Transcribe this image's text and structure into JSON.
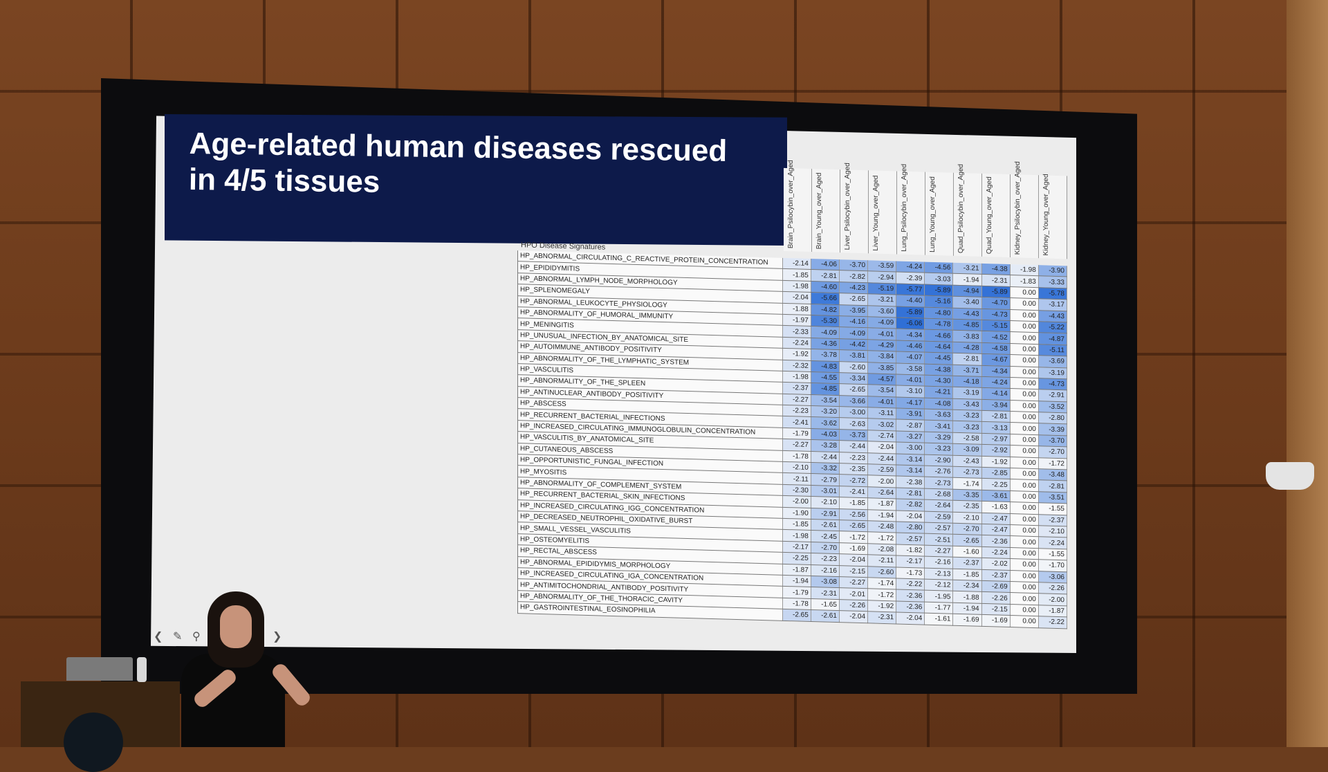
{
  "slide": {
    "title_line1": "Age-related human diseases rescued",
    "title_line2": "in 4/5 tissues",
    "row_header": "HPO Disease Signatures",
    "columns": [
      "Brain_Psilocybin_over_Aged",
      "Brain_Young_over_Aged",
      "Liver_Psilocybin_over_Aged",
      "Liver_Young_over_Aged",
      "Lung_Psilocybin_over_Aged",
      "Lung_Young_over_Aged",
      "Quad_Psilocybin_over_Aged",
      "Quad_Young_over_Aged",
      "Kidney_Psilocybin_over_Aged",
      "Kidney_Young_over_Aged"
    ],
    "rows": [
      {
        "name": "HP_ABNORMAL_CIRCULATING_C_REACTIVE_PROTEIN_CONCENTRATION",
        "values": [
          "-2.14",
          "-4.06",
          "-3.70",
          "-3.59",
          "-4.24",
          "-4.56",
          "-3.21",
          "-4.38",
          "-1.98",
          "-3.90"
        ]
      },
      {
        "name": "HP_EPIDIDYMITIS",
        "values": [
          "-1.85",
          "-2.81",
          "-2.82",
          "-2.94",
          "-2.39",
          "-3.03",
          "-1.94",
          "-2.31",
          "-1.83",
          "-3.33"
        ]
      },
      {
        "name": "HP_ABNORMAL_LYMPH_NODE_MORPHOLOGY",
        "values": [
          "-1.98",
          "-4.60",
          "-4.23",
          "-5.19",
          "-5.77",
          "-5.89",
          "-4.94",
          "-5.89",
          "0.00",
          "-5.78"
        ]
      },
      {
        "name": "HP_SPLENOMEGALY",
        "values": [
          "-2.04",
          "-5.66",
          "-2.65",
          "-3.21",
          "-4.40",
          "-5.16",
          "-3.40",
          "-4.70",
          "0.00",
          "-3.17"
        ]
      },
      {
        "name": "HP_ABNORMAL_LEUKOCYTE_PHYSIOLOGY",
        "values": [
          "-1.88",
          "-4.82",
          "-3.95",
          "-3.60",
          "-5.89",
          "-4.80",
          "-4.43",
          "-4.73",
          "0.00",
          "-4.43"
        ]
      },
      {
        "name": "HP_ABNORMALITY_OF_HUMORAL_IMMUNITY",
        "values": [
          "-1.97",
          "-5.30",
          "-4.16",
          "-4.09",
          "-6.06",
          "-4.78",
          "-4.85",
          "-5.15",
          "0.00",
          "-5.22"
        ]
      },
      {
        "name": "HP_MENINGITIS",
        "values": [
          "-2.33",
          "-4.09",
          "-4.09",
          "-4.01",
          "-4.34",
          "-4.66",
          "-3.83",
          "-4.52",
          "0.00",
          "-4.87"
        ]
      },
      {
        "name": "HP_UNUSUAL_INFECTION_BY_ANATOMICAL_SITE",
        "values": [
          "-2.24",
          "-4.36",
          "-4.42",
          "-4.29",
          "-4.46",
          "-4.64",
          "-4.28",
          "-4.58",
          "0.00",
          "-5.11"
        ]
      },
      {
        "name": "HP_AUTOIMMUNE_ANTIBODY_POSITIVITY",
        "values": [
          "-1.92",
          "-3.78",
          "-3.81",
          "-3.84",
          "-4.07",
          "-4.45",
          "-2.81",
          "-4.67",
          "0.00",
          "-3.69"
        ]
      },
      {
        "name": "HP_ABNORMALITY_OF_THE_LYMPHATIC_SYSTEM",
        "values": [
          "-2.32",
          "-4.83",
          "-2.60",
          "-3.85",
          "-3.58",
          "-4.38",
          "-3.71",
          "-4.34",
          "0.00",
          "-3.19"
        ]
      },
      {
        "name": "HP_VASCULITIS",
        "values": [
          "-1.98",
          "-4.55",
          "-3.34",
          "-4.57",
          "-4.01",
          "-4.30",
          "-4.18",
          "-4.24",
          "0.00",
          "-4.73"
        ]
      },
      {
        "name": "HP_ABNORMALITY_OF_THE_SPLEEN",
        "values": [
          "-2.37",
          "-4.85",
          "-2.65",
          "-3.54",
          "-3.10",
          "-4.21",
          "-3.19",
          "-4.14",
          "0.00",
          "-2.91"
        ]
      },
      {
        "name": "HP_ANTINUCLEAR_ANTIBODY_POSITIVITY",
        "values": [
          "-2.27",
          "-3.54",
          "-3.66",
          "-4.01",
          "-4.17",
          "-4.08",
          "-3.43",
          "-3.94",
          "0.00",
          "-3.52"
        ]
      },
      {
        "name": "HP_ABSCESS",
        "values": [
          "-2.23",
          "-3.20",
          "-3.00",
          "-3.11",
          "-3.91",
          "-3.63",
          "-3.23",
          "-2.81",
          "0.00",
          "-2.80"
        ]
      },
      {
        "name": "HP_RECURRENT_BACTERIAL_INFECTIONS",
        "values": [
          "-2.41",
          "-3.62",
          "-2.63",
          "-3.02",
          "-2.87",
          "-3.41",
          "-3.23",
          "-3.13",
          "0.00",
          "-3.39"
        ]
      },
      {
        "name": "HP_INCREASED_CIRCULATING_IMMUNOGLOBULIN_CONCENTRATION",
        "values": [
          "-1.79",
          "-4.03",
          "-3.73",
          "-2.74",
          "-3.27",
          "-3.29",
          "-2.58",
          "-2.97",
          "0.00",
          "-3.70"
        ]
      },
      {
        "name": "HP_VASCULITIS_BY_ANATOMICAL_SITE",
        "values": [
          "-2.27",
          "-3.28",
          "-2.44",
          "-2.04",
          "-3.00",
          "-3.23",
          "-3.09",
          "-2.92",
          "0.00",
          "-2.70"
        ]
      },
      {
        "name": "HP_CUTANEOUS_ABSCESS",
        "values": [
          "-1.78",
          "-2.44",
          "-2.23",
          "-2.44",
          "-3.14",
          "-2.90",
          "-2.43",
          "-1.92",
          "0.00",
          "-1.72"
        ]
      },
      {
        "name": "HP_OPPORTUNISTIC_FUNGAL_INFECTION",
        "values": [
          "-2.10",
          "-3.32",
          "-2.35",
          "-2.59",
          "-3.14",
          "-2.76",
          "-2.73",
          "-2.85",
          "0.00",
          "-3.48"
        ]
      },
      {
        "name": "HP_MYOSITIS",
        "values": [
          "-2.11",
          "-2.79",
          "-2.72",
          "-2.00",
          "-2.38",
          "-2.73",
          "-1.74",
          "-2.25",
          "0.00",
          "-2.81"
        ]
      },
      {
        "name": "HP_ABNORMALITY_OF_COMPLEMENT_SYSTEM",
        "values": [
          "-2.30",
          "-3.01",
          "-2.41",
          "-2.64",
          "-2.81",
          "-2.68",
          "-3.35",
          "-3.61",
          "0.00",
          "-3.51"
        ]
      },
      {
        "name": "HP_RECURRENT_BACTERIAL_SKIN_INFECTIONS",
        "values": [
          "-2.00",
          "-2.10",
          "-1.85",
          "-1.87",
          "-2.82",
          "-2.64",
          "-2.35",
          "-1.63",
          "0.00",
          "-1.55"
        ]
      },
      {
        "name": "HP_INCREASED_CIRCULATING_IGG_CONCENTRATION",
        "values": [
          "-1.90",
          "-2.91",
          "-2.56",
          "-1.94",
          "-2.04",
          "-2.59",
          "-2.10",
          "-2.47",
          "0.00",
          "-2.37"
        ]
      },
      {
        "name": "HP_DECREASED_NEUTROPHIL_OXIDATIVE_BURST",
        "values": [
          "-1.85",
          "-2.61",
          "-2.65",
          "-2.48",
          "-2.80",
          "-2.57",
          "-2.70",
          "-2.47",
          "0.00",
          "-2.10"
        ]
      },
      {
        "name": "HP_SMALL_VESSEL_VASCULITIS",
        "values": [
          "-1.98",
          "-2.45",
          "-1.72",
          "-1.72",
          "-2.57",
          "-2.51",
          "-2.65",
          "-2.36",
          "0.00",
          "-2.24"
        ]
      },
      {
        "name": "HP_OSTEOMYELITIS",
        "values": [
          "-2.17",
          "-2.70",
          "-1.69",
          "-2.08",
          "-1.82",
          "-2.27",
          "-1.60",
          "-2.24",
          "0.00",
          "-1.55"
        ]
      },
      {
        "name": "HP_RECTAL_ABSCESS",
        "values": [
          "-2.25",
          "-2.23",
          "-2.04",
          "-2.11",
          "-2.17",
          "-2.16",
          "-2.37",
          "-2.02",
          "0.00",
          "-1.70"
        ]
      },
      {
        "name": "HP_ABNORMAL_EPIDIDYMIS_MORPHOLOGY",
        "values": [
          "-1.87",
          "-2.16",
          "-2.15",
          "-2.60",
          "-1.73",
          "-2.13",
          "-1.85",
          "-2.37",
          "0.00",
          "-3.06"
        ]
      },
      {
        "name": "HP_INCREASED_CIRCULATING_IGA_CONCENTRATION",
        "values": [
          "-1.94",
          "-3.08",
          "-2.27",
          "-1.74",
          "-2.22",
          "-2.12",
          "-2.34",
          "-2.69",
          "0.00",
          "-2.26"
        ]
      },
      {
        "name": "HP_ANTIMITOCHONDRIAL_ANTIBODY_POSITIVITY",
        "values": [
          "-1.79",
          "-2.31",
          "-2.01",
          "-1.72",
          "-2.36",
          "-1.95",
          "-1.88",
          "-2.26",
          "0.00",
          "-2.00"
        ]
      },
      {
        "name": "HP_ABNORMALITY_OF_THE_THORACIC_CAVITY",
        "values": [
          "-1.78",
          "-1.65",
          "-2.26",
          "-1.92",
          "-2.36",
          "-1.77",
          "-1.94",
          "-2.15",
          "0.00",
          "-1.87"
        ]
      },
      {
        "name": "HP_GASTROINTESTINAL_EOSINOPHILIA",
        "values": [
          "-2.65",
          "-2.61",
          "-2.04",
          "-2.31",
          "-2.04",
          "-1.61",
          "-1.69",
          "-1.69",
          "0.00",
          "-2.22"
        ]
      }
    ]
  },
  "colors": {
    "title_band": "#0d1a4a",
    "strong_blue": "#2f6fd6",
    "light_blue": "#bcd6f2",
    "white": "#fafafa"
  },
  "toolbar": [
    "back-arrow-icon",
    "pen-icon",
    "magnifier-icon",
    "forward-arrow-icon"
  ]
}
